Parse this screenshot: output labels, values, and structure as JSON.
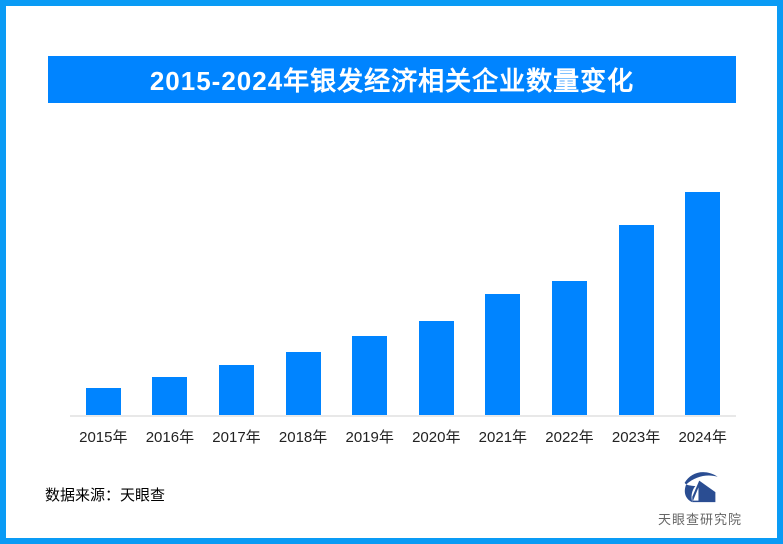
{
  "frame": {
    "border_color": "#0a9bf5",
    "background": "#ffffff"
  },
  "title_banner": {
    "text": "2015-2024年银发经济相关企业数量变化",
    "bg_color": "#0084ff",
    "text_color": "#ffffff"
  },
  "chart_data": {
    "type": "bar",
    "title": "2015-2024年银发经济相关企业数量变化",
    "categories": [
      "2015年",
      "2016年",
      "2017年",
      "2018年",
      "2019年",
      "2020年",
      "2021年",
      "2022年",
      "2023年",
      "2024年"
    ],
    "values": [
      12.1,
      17.0,
      22.4,
      28.3,
      35.4,
      42.2,
      54.3,
      60.1,
      85.2,
      100.0
    ],
    "values_note": "relative index estimated from bar heights, 2024 = 100; chart shows no numeric axis or data labels",
    "xlabel": "",
    "ylabel": "",
    "grid": false,
    "legend": "none",
    "bar_color": "#0084ff",
    "axis_line_color": "#e8e8e8",
    "tick_label_color": "#222222"
  },
  "footer": {
    "source_text": "数据来源：天眼查",
    "logo_text": "天眼查研究院",
    "logo_color": "#2a4d92",
    "logo_text_color": "#666666"
  }
}
